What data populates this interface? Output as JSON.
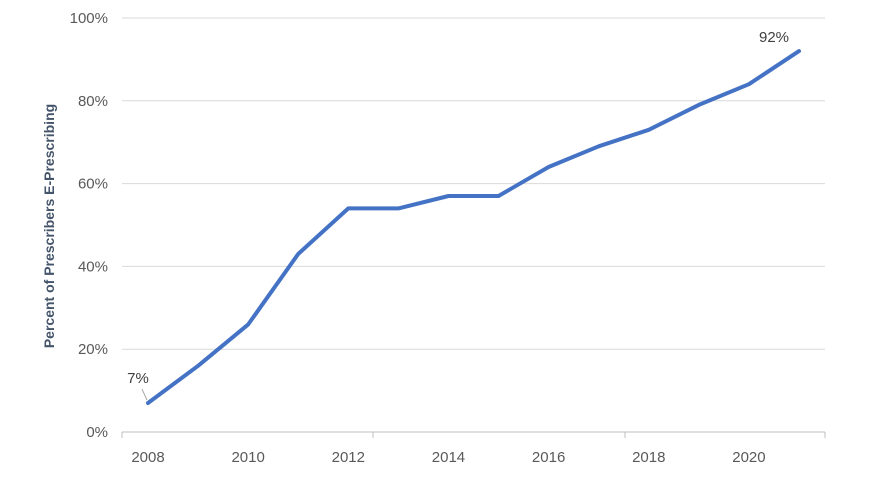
{
  "chart_data": {
    "type": "line",
    "title": "",
    "xlabel": "",
    "ylabel": "Percent of Prescribers E-Prescribing",
    "x": [
      2008,
      2009,
      2010,
      2011,
      2012,
      2013,
      2014,
      2015,
      2016,
      2017,
      2018,
      2019,
      2020,
      2021
    ],
    "series": [
      {
        "values": [
          7,
          16,
          26,
          43,
          54,
          54,
          57,
          57,
          64,
          69,
          73,
          79,
          84,
          92
        ]
      }
    ],
    "xlim": [
      2008,
      2021
    ],
    "ylim": [
      0,
      100
    ],
    "x_ticks": [
      "2008",
      "2010",
      "2012",
      "2014",
      "2016",
      "2018",
      "2020"
    ],
    "y_ticks": [
      "0%",
      "20%",
      "40%",
      "60%",
      "80%",
      "100%"
    ],
    "data_labels": [
      {
        "x": 2008,
        "text": "7%"
      },
      {
        "x": 2021,
        "text": "92%"
      }
    ],
    "grid": true,
    "legend": "none",
    "colors": {
      "line": "#4472c4",
      "grid": "#d9d9d9",
      "axis": "#bfbfbf"
    }
  }
}
